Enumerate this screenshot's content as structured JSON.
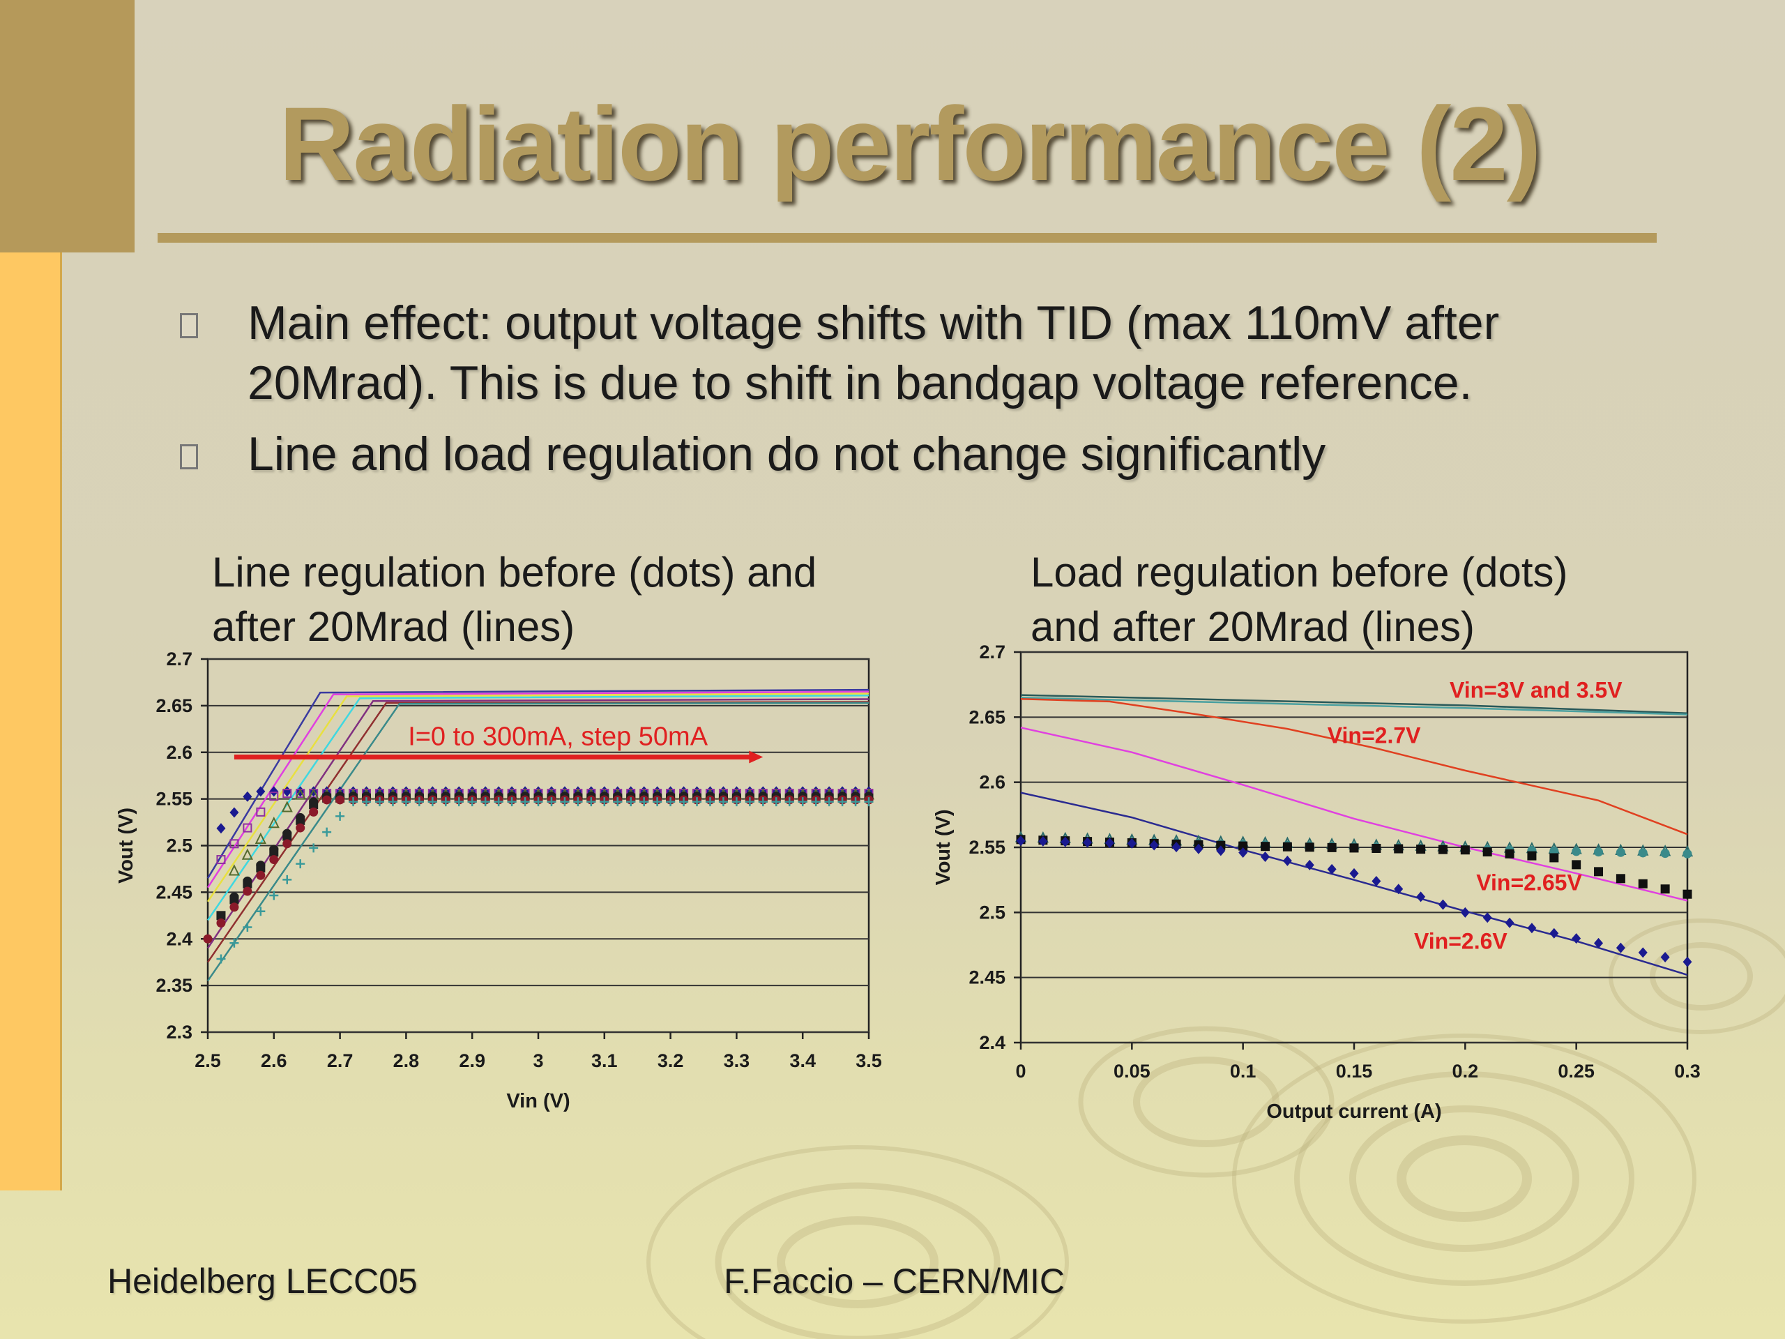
{
  "slide": {
    "title": "Radiation performance (2)",
    "bullets": [
      "Main effect: output voltage shifts with TID (max 110mV after 20Mrad). This is due to shift in bandgap voltage reference.",
      "Line and load regulation do not change significantly"
    ],
    "footer_left": "Heidelberg LECC05",
    "footer_center": "F.Faccio – CERN/MIC",
    "colors": {
      "title": "#b29a5e",
      "left_bar_dark": "#b5995a",
      "left_bar_light": "#fec862",
      "rule": "#b49a5c"
    }
  },
  "chart_data": [
    {
      "type": "scatter",
      "title": "Line regulation before (dots) and after 20Mrad (lines)",
      "title_lines": [
        "Line regulation before (dots) and",
        "after 20Mrad (lines)"
      ],
      "xlabel": "Vin (V)",
      "ylabel": "Vout (V)",
      "xlim": [
        2.5,
        3.5
      ],
      "ylim": [
        2.3,
        2.7
      ],
      "xticks": [
        "2.5",
        "2.6",
        "2.7",
        "2.8",
        "2.9",
        "3",
        "3.1",
        "3.2",
        "3.3",
        "3.4",
        "3.5"
      ],
      "yticks": [
        "2.3",
        "2.35",
        "2.4",
        "2.45",
        "2.5",
        "2.55",
        "2.6",
        "2.65",
        "2.7"
      ],
      "grid": true,
      "annotation": {
        "text": "I=0 to 300mA, step 50mA",
        "arrow_from": [
          2.54,
          2.595
        ],
        "arrow_to": [
          3.34,
          2.595
        ]
      },
      "lines": [
        {
          "color": "#3a3aa0",
          "points": [
            [
              2.5,
              2.465
            ],
            [
              2.67,
              2.664
            ],
            [
              3.5,
              2.667
            ]
          ]
        },
        {
          "color": "#e040e0",
          "points": [
            [
              2.5,
              2.455
            ],
            [
              2.69,
              2.662
            ],
            [
              3.5,
              2.665
            ]
          ]
        },
        {
          "color": "#e8e040",
          "points": [
            [
              2.5,
              2.44
            ],
            [
              2.71,
              2.66
            ],
            [
              3.5,
              2.663
            ]
          ]
        },
        {
          "color": "#40d8e0",
          "points": [
            [
              2.5,
              2.42
            ],
            [
              2.73,
              2.658
            ],
            [
              3.5,
              2.661
            ]
          ]
        },
        {
          "color": "#803080",
          "points": [
            [
              2.5,
              2.39
            ],
            [
              2.75,
              2.655
            ],
            [
              3.5,
              2.657
            ]
          ]
        },
        {
          "color": "#903030",
          "points": [
            [
              2.5,
              2.375
            ],
            [
              2.77,
              2.653
            ],
            [
              3.5,
              2.654
            ]
          ]
        },
        {
          "color": "#3a8a8a",
          "points": [
            [
              2.5,
              2.355
            ],
            [
              2.79,
              2.652
            ],
            [
              3.5,
              2.653
            ]
          ]
        }
      ],
      "dot_series": [
        {
          "marker": "diamond",
          "color": "#1a1a90",
          "x_start": 2.51,
          "y_start": 2.51,
          "y_plateau": 2.558
        },
        {
          "marker": "square-open",
          "color": "#9030a0",
          "x_start": 2.52,
          "y_start": 2.485,
          "y_plateau": 2.556
        },
        {
          "marker": "triangle-open",
          "color": "#556b2f",
          "x_start": 2.53,
          "y_start": 2.465,
          "y_plateau": 2.555
        },
        {
          "marker": "circle",
          "color": "#202020",
          "x_start": 2.54,
          "y_start": 2.445,
          "y_plateau": 2.553
        },
        {
          "marker": "square",
          "color": "#202020",
          "x_start": 2.52,
          "y_start": 2.425,
          "y_plateau": 2.551
        },
        {
          "marker": "circle",
          "color": "#8a1a2a",
          "x_start": 2.5,
          "y_start": 2.4,
          "y_plateau": 2.549
        },
        {
          "marker": "cross",
          "color": "#3a9a9a",
          "x_start": 2.51,
          "y_start": 2.37,
          "y_plateau": 2.547
        }
      ]
    },
    {
      "type": "scatter",
      "title": "Load regulation before (dots) and after 20Mrad (lines)",
      "title_lines": [
        "Load regulation before (dots)",
        "and after 20Mrad (lines)"
      ],
      "xlabel": "Output current (A)",
      "ylabel": "Vout (V)",
      "xlim": [
        0,
        0.3
      ],
      "ylim": [
        2.4,
        2.7
      ],
      "xticks": [
        "0",
        "0.05",
        "0.1",
        "0.15",
        "0.2",
        "0.25",
        "0.3"
      ],
      "yticks": [
        "2.4",
        "2.45",
        "2.5",
        "2.55",
        "2.6",
        "2.65",
        "2.7"
      ],
      "grid": true,
      "labels": [
        {
          "text": "Vin=3V and 3.5V",
          "x": 0.193,
          "y": 2.665
        },
        {
          "text": "Vin=2.7V",
          "x": 0.138,
          "y": 2.63
        },
        {
          "text": "Vin=2.65V",
          "x": 0.205,
          "y": 2.517
        },
        {
          "text": "Vin=2.6V",
          "x": 0.177,
          "y": 2.472
        }
      ],
      "lines": [
        {
          "name": "Vin=3V and 3.5V",
          "color": "#2a5a5a",
          "points": [
            [
              0,
              2.667
            ],
            [
              0.1,
              2.663
            ],
            [
              0.2,
              2.659
            ],
            [
              0.3,
              2.653
            ]
          ]
        },
        {
          "name": "Vin=3V and 3.5V",
          "color": "#4aa0a0",
          "points": [
            [
              0,
              2.665
            ],
            [
              0.1,
              2.661
            ],
            [
              0.2,
              2.657
            ],
            [
              0.3,
              2.652
            ]
          ]
        },
        {
          "name": "Vin=2.7V",
          "color": "#e04020",
          "points": [
            [
              0,
              2.664
            ],
            [
              0.04,
              2.662
            ],
            [
              0.08,
              2.652
            ],
            [
              0.12,
              2.641
            ],
            [
              0.16,
              2.626
            ],
            [
              0.2,
              2.609
            ],
            [
              0.26,
              2.586
            ],
            [
              0.3,
              2.56
            ]
          ]
        },
        {
          "name": "Vin=2.65V",
          "color": "#e040e0",
          "points": [
            [
              0,
              2.642
            ],
            [
              0.05,
              2.623
            ],
            [
              0.1,
              2.598
            ],
            [
              0.15,
              2.572
            ],
            [
              0.2,
              2.55
            ],
            [
              0.25,
              2.53
            ],
            [
              0.3,
              2.509
            ]
          ]
        },
        {
          "name": "Vin=2.6V",
          "color": "#2a2a90",
          "points": [
            [
              0,
              2.592
            ],
            [
              0.05,
              2.573
            ],
            [
              0.1,
              2.548
            ],
            [
              0.15,
              2.525
            ],
            [
              0.2,
              2.501
            ],
            [
              0.25,
              2.478
            ],
            [
              0.3,
              2.452
            ]
          ]
        }
      ],
      "dot_series": [
        {
          "marker": "triangle-open",
          "color": "#2a6a6a",
          "points": [
            [
              0,
              2.558
            ],
            [
              0.3,
              2.547
            ]
          ]
        },
        {
          "marker": "circle",
          "color": "#3a8a8a",
          "points": [
            [
              0,
              2.556
            ],
            [
              0.3,
              2.545
            ]
          ]
        },
        {
          "marker": "square",
          "color": "#101010",
          "points": [
            [
              0,
              2.556
            ],
            [
              0.1,
              2.551
            ],
            [
              0.2,
              2.548
            ],
            [
              0.24,
              2.542
            ],
            [
              0.27,
              2.526
            ],
            [
              0.3,
              2.514
            ]
          ]
        },
        {
          "marker": "diamond",
          "color": "#1a1a90",
          "points": [
            [
              0,
              2.555
            ],
            [
              0.05,
              2.553
            ],
            [
              0.1,
              2.546
            ],
            [
              0.15,
              2.53
            ],
            [
              0.2,
              2.5
            ],
            [
              0.25,
              2.48
            ],
            [
              0.3,
              2.462
            ]
          ]
        }
      ]
    }
  ]
}
